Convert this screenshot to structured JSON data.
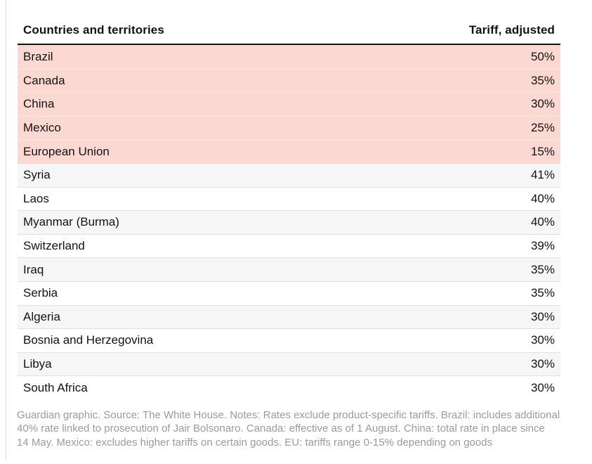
{
  "table": {
    "header": {
      "country_col": "Countries and territories",
      "tariff_col": "Tariff, adjusted"
    },
    "rows": [
      {
        "country": "Brazil",
        "tariff": "50%",
        "highlight": true
      },
      {
        "country": "Canada",
        "tariff": "35%",
        "highlight": true
      },
      {
        "country": "China",
        "tariff": "30%",
        "highlight": true
      },
      {
        "country": "Mexico",
        "tariff": "25%",
        "highlight": true
      },
      {
        "country": "European Union",
        "tariff": "15%",
        "highlight": true
      },
      {
        "country": "Syria",
        "tariff": "41%",
        "highlight": false
      },
      {
        "country": "Laos",
        "tariff": "40%",
        "highlight": false
      },
      {
        "country": "Myanmar (Burma)",
        "tariff": "40%",
        "highlight": false
      },
      {
        "country": "Switzerland",
        "tariff": "39%",
        "highlight": false
      },
      {
        "country": "Iraq",
        "tariff": "35%",
        "highlight": false
      },
      {
        "country": "Serbia",
        "tariff": "35%",
        "highlight": false
      },
      {
        "country": "Algeria",
        "tariff": "30%",
        "highlight": false
      },
      {
        "country": "Bosnia and Herzegovina",
        "tariff": "30%",
        "highlight": false
      },
      {
        "country": "Libya",
        "tariff": "30%",
        "highlight": false
      },
      {
        "country": "South Africa",
        "tariff": "30%",
        "highlight": false
      }
    ]
  },
  "footer": {
    "lines": [
      "Guardian graphic. Source: The White House. Notes: Rates exclude product-specific tariffs. Brazil: includes additional",
      "40% rate linked to prosecution of Jair Bolsonaro. Canada: effective as of 1 August. China: total rate in place since",
      "14 May. Mexico: excludes higher tariffs on certain goods. EU: tariffs range 0-15% depending on goods"
    ]
  },
  "colors": {
    "highlight_row": "#fcd8d2",
    "highlight_divider": "#fde8e3",
    "alt_row": "#f6f6f6",
    "row_divider": "#e0e0e0",
    "header_rule": "#121212",
    "text": "#121212",
    "footer_text": "#9b9b9b",
    "embed_border": "#d9d9d9"
  },
  "chart_data": {
    "type": "table",
    "title": "",
    "columns": [
      "Countries and territories",
      "Tariff, adjusted"
    ],
    "rows": [
      [
        "Brazil",
        "50%"
      ],
      [
        "Canada",
        "35%"
      ],
      [
        "China",
        "30%"
      ],
      [
        "Mexico",
        "25%"
      ],
      [
        "European Union",
        "15%"
      ],
      [
        "Syria",
        "41%"
      ],
      [
        "Laos",
        "40%"
      ],
      [
        "Myanmar (Burma)",
        "40%"
      ],
      [
        "Switzerland",
        "39%"
      ],
      [
        "Iraq",
        "35%"
      ],
      [
        "Serbia",
        "35%"
      ],
      [
        "Algeria",
        "30%"
      ],
      [
        "Bosnia and Herzegovina",
        "30%"
      ],
      [
        "Libya",
        "30%"
      ],
      [
        "South Africa",
        "30%"
      ]
    ],
    "values_percent": [
      50,
      35,
      30,
      25,
      15,
      41,
      40,
      40,
      39,
      35,
      35,
      30,
      30,
      30,
      30
    ],
    "highlighted_rows": [
      "Brazil",
      "Canada",
      "China",
      "Mexico",
      "European Union"
    ],
    "legend_position": "none",
    "grid": "row-dividers",
    "source_note": "Guardian graphic. Source: The White House. Notes: Rates exclude product-specific tariffs. Brazil: includes additional 40% rate linked to prosecution of Jair Bolsonaro. Canada: effective as of 1 August. China: total rate in place since 14 May. Mexico: excludes higher tariffs on certain goods. EU: tariffs range 0-15% depending on goods"
  }
}
